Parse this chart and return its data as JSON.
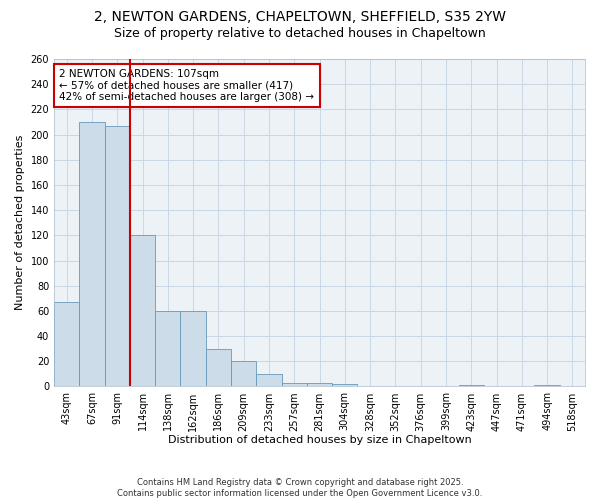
{
  "title1": "2, NEWTON GARDENS, CHAPELTOWN, SHEFFIELD, S35 2YW",
  "title2": "Size of property relative to detached houses in Chapeltown",
  "xlabel": "Distribution of detached houses by size in Chapeltown",
  "ylabel": "Number of detached properties",
  "bins": [
    "43sqm",
    "67sqm",
    "91sqm",
    "114sqm",
    "138sqm",
    "162sqm",
    "186sqm",
    "209sqm",
    "233sqm",
    "257sqm",
    "281sqm",
    "304sqm",
    "328sqm",
    "352sqm",
    "376sqm",
    "399sqm",
    "423sqm",
    "447sqm",
    "471sqm",
    "494sqm",
    "518sqm"
  ],
  "bar_values": [
    67,
    210,
    207,
    120,
    60,
    60,
    30,
    20,
    10,
    3,
    3,
    2,
    0,
    0,
    0,
    0,
    1,
    0,
    0,
    1,
    0
  ],
  "bar_color": "#ccdce8",
  "bar_edge_color": "#6699bb",
  "vline_x_idx": 2.5,
  "vline_color": "#cc0000",
  "annotation_text": "2 NEWTON GARDENS: 107sqm\n← 57% of detached houses are smaller (417)\n42% of semi-detached houses are larger (308) →",
  "annotation_box_color": "#cc0000",
  "ylim": [
    0,
    260
  ],
  "yticks": [
    0,
    20,
    40,
    60,
    80,
    100,
    120,
    140,
    160,
    180,
    200,
    220,
    240,
    260
  ],
  "grid_color": "#c8d8e4",
  "bg_color": "#ecf2f6",
  "footer": "Contains HM Land Registry data © Crown copyright and database right 2025.\nContains public sector information licensed under the Open Government Licence v3.0.",
  "title_fontsize": 10,
  "subtitle_fontsize": 9,
  "axis_label_fontsize": 8,
  "tick_fontsize": 7,
  "annotation_fontsize": 7.5,
  "footer_fontsize": 6
}
